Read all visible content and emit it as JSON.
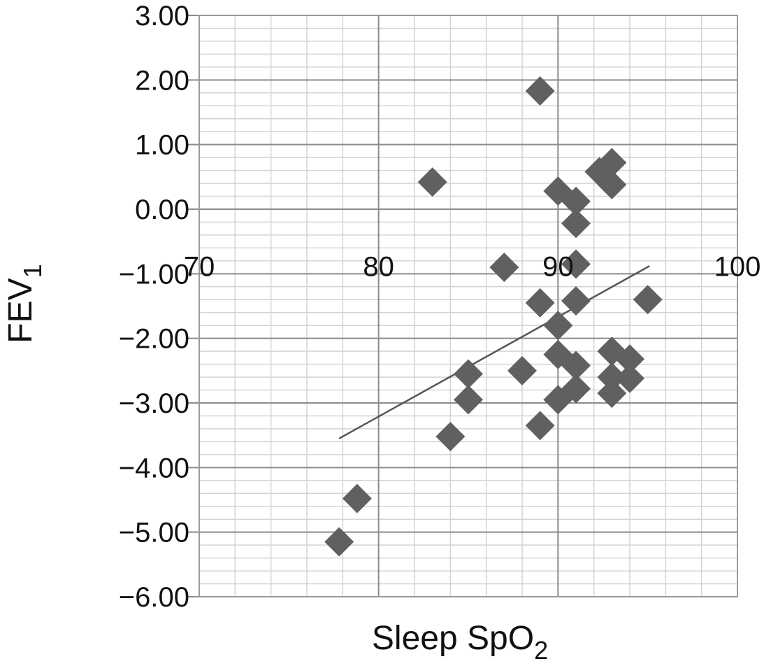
{
  "chart_data": {
    "type": "scatter",
    "xlabel": "Sleep SpO",
    "xlabel_subscript": "2",
    "ylabel": "FEV",
    "ylabel_subscript": "1",
    "xlim": [
      70,
      100
    ],
    "ylim": [
      -6.0,
      3.0
    ],
    "x_ticks": [
      "70",
      "80",
      "90",
      "100"
    ],
    "x_tick_values": [
      70,
      80,
      90,
      100
    ],
    "y_ticks": [
      "3.00",
      "2.00",
      "1.00",
      "0.00",
      "−1.00",
      "−2.00",
      "−3.00",
      "−4.00",
      "−5.00",
      "−6.00"
    ],
    "y_tick_values": [
      3,
      2,
      1,
      0,
      -1,
      -2,
      -3,
      -4,
      -5,
      -6
    ],
    "grid": true,
    "minor_y_gridlines_per_major": 5,
    "x_axis_crosses_at_y": -1.0,
    "marker": "diamond",
    "marker_color": "#606060",
    "trendline": {
      "x": [
        77.8,
        95.1
      ],
      "y": [
        -3.55,
        -0.88
      ],
      "color": "#555555"
    },
    "series": [
      {
        "points": [
          {
            "x": 77.8,
            "y": -5.15
          },
          {
            "x": 78.8,
            "y": -4.48
          },
          {
            "x": 83.0,
            "y": 0.42
          },
          {
            "x": 84.0,
            "y": -3.52
          },
          {
            "x": 85.0,
            "y": -2.55
          },
          {
            "x": 85.0,
            "y": -2.95
          },
          {
            "x": 87.0,
            "y": -0.9
          },
          {
            "x": 88.0,
            "y": -2.5
          },
          {
            "x": 89.0,
            "y": 1.83
          },
          {
            "x": 89.0,
            "y": -1.45
          },
          {
            "x": 89.0,
            "y": -3.35
          },
          {
            "x": 90.0,
            "y": 0.28
          },
          {
            "x": 90.0,
            "y": -1.8
          },
          {
            "x": 90.0,
            "y": -2.25
          },
          {
            "x": 90.0,
            "y": -2.95
          },
          {
            "x": 91.0,
            "y": 0.12
          },
          {
            "x": 91.0,
            "y": -0.22
          },
          {
            "x": 91.0,
            "y": -0.85
          },
          {
            "x": 91.0,
            "y": -1.42
          },
          {
            "x": 91.0,
            "y": -2.42
          },
          {
            "x": 91.0,
            "y": -2.78
          },
          {
            "x": 92.3,
            "y": 0.58
          },
          {
            "x": 93.0,
            "y": 0.72
          },
          {
            "x": 93.0,
            "y": 0.38
          },
          {
            "x": 93.0,
            "y": -2.2
          },
          {
            "x": 93.0,
            "y": -2.6
          },
          {
            "x": 93.0,
            "y": -2.85
          },
          {
            "x": 94.0,
            "y": -2.32
          },
          {
            "x": 94.0,
            "y": -2.62
          },
          {
            "x": 95.0,
            "y": -1.4
          }
        ]
      }
    ]
  }
}
